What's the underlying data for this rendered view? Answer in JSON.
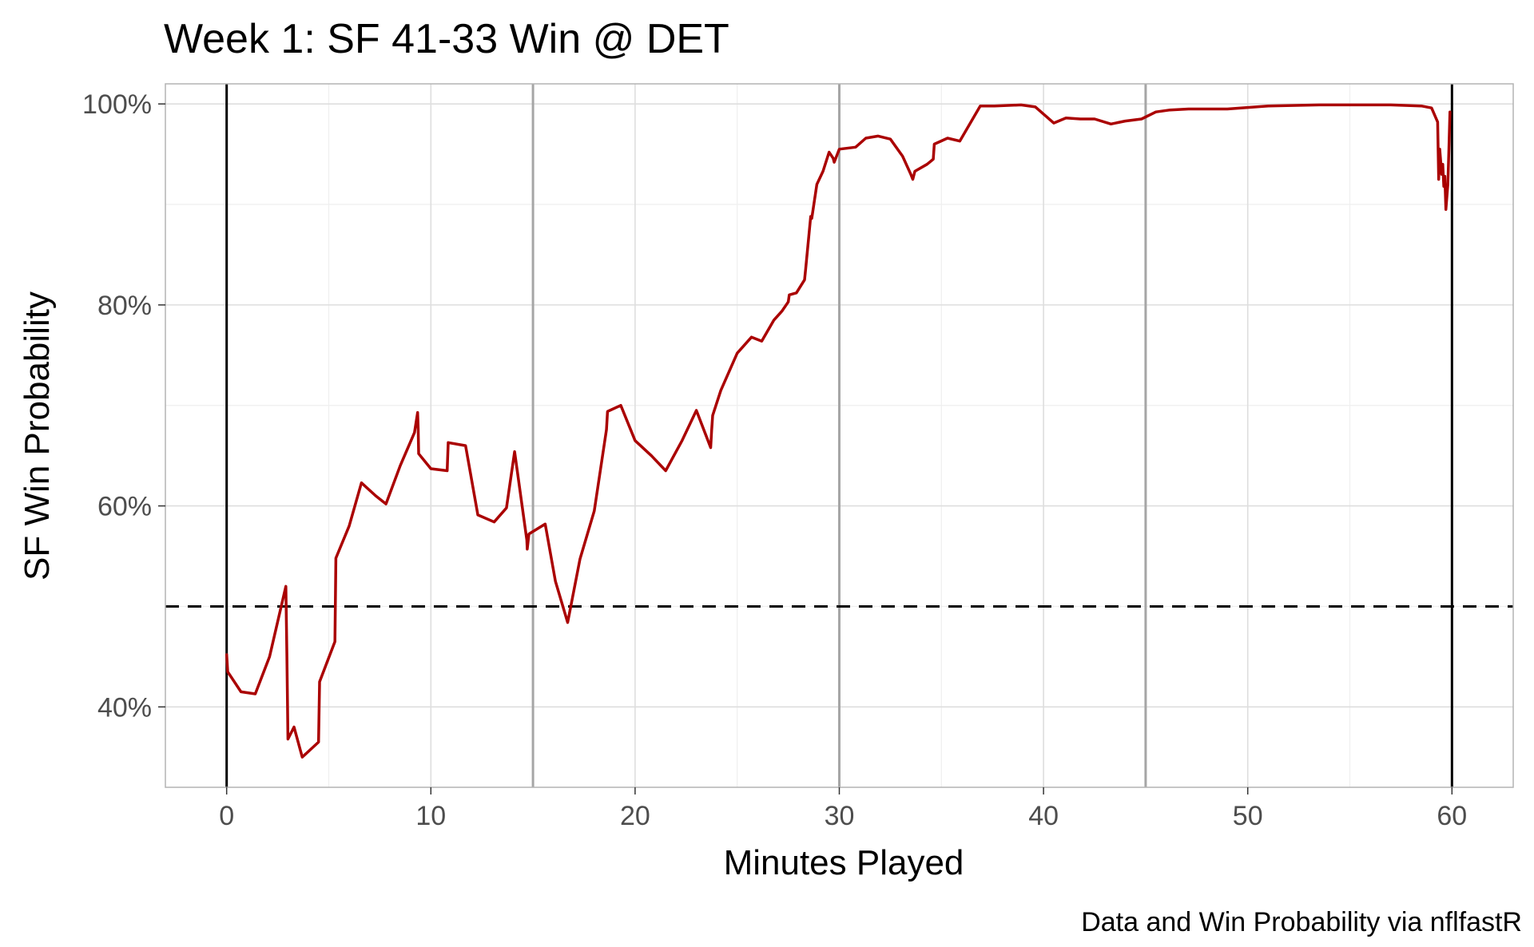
{
  "chart_data": {
    "type": "line",
    "title": "Week 1: SF 41-33 Win @ DET",
    "xlabel": "Minutes Played",
    "ylabel": "SF Win Probability",
    "caption": "Data and Win Probability via nflfastR",
    "xlim": [
      -3,
      63
    ],
    "ylim": [
      0.32,
      1.02
    ],
    "x_ticks": [
      0,
      10,
      20,
      30,
      40,
      50,
      60
    ],
    "x_tick_labels": [
      "0",
      "10",
      "20",
      "30",
      "40",
      "50",
      "60"
    ],
    "y_ticks": [
      0.4,
      0.6,
      0.8,
      1.0
    ],
    "y_tick_labels": [
      "40%",
      "60%",
      "80%",
      "100%"
    ],
    "grid": true,
    "reference_lines": {
      "horizontal_dashed": 0.5,
      "game_boundaries": [
        0,
        60
      ],
      "quarter_boundaries": [
        15,
        30,
        45
      ]
    },
    "colors": {
      "line": "#aa0000",
      "grid_major": "#dedede",
      "grid_minor": "#efefef",
      "quarter_lines": "#a6a6a6",
      "game_lines": "#000000",
      "panel_border": "#b3b3b3"
    },
    "series": [
      {
        "x": [
          0,
          0.05,
          0.7,
          1.4,
          2.1,
          2.9,
          2.95,
          3.0,
          3.3,
          3.7,
          4.5,
          4.55,
          5.3,
          5.35,
          6.0,
          6.6,
          7.3,
          7.8,
          8.5,
          9.2,
          9.35,
          9.38,
          9.4,
          10.0,
          10.8,
          10.85,
          11.7,
          12.3,
          13.1,
          13.7,
          14.1,
          14.7,
          14.72,
          14.8,
          15.6,
          16.1,
          16.7,
          17.3,
          18.0,
          18.6,
          18.65,
          19.3,
          20.0,
          20.8,
          21.5,
          22.3,
          23.0,
          23.7,
          23.75,
          23.8,
          24.2,
          25.0,
          25.7,
          26.2,
          26.8,
          27.2,
          27.5,
          27.55,
          27.9,
          28.3,
          28.35,
          28.6,
          28.65,
          28.9,
          29.2,
          29.5,
          29.7,
          29.75,
          30.0,
          30.8,
          31.3,
          31.9,
          32.5,
          33.1,
          33.5,
          33.6,
          33.7,
          34.3,
          34.6,
          34.65,
          35.3,
          35.9,
          36.9,
          37.6,
          38.9,
          39.6,
          40.5,
          41.1,
          41.8,
          42.5,
          43.3,
          44.0,
          44.8,
          45.5,
          46.2,
          47.1,
          49.0,
          51.0,
          53.5,
          55.0,
          57.0,
          58.5,
          59.0,
          59.3,
          59.35,
          59.4,
          59.5,
          59.55,
          59.6,
          59.65,
          59.7,
          59.8,
          59.85,
          59.9
        ],
        "y": [
          0.452,
          0.435,
          0.415,
          0.413,
          0.45,
          0.52,
          0.45,
          0.368,
          0.38,
          0.35,
          0.365,
          0.425,
          0.465,
          0.548,
          0.58,
          0.623,
          0.61,
          0.602,
          0.64,
          0.673,
          0.693,
          0.677,
          0.652,
          0.637,
          0.635,
          0.663,
          0.66,
          0.591,
          0.584,
          0.598,
          0.654,
          0.566,
          0.557,
          0.572,
          0.582,
          0.525,
          0.484,
          0.547,
          0.595,
          0.676,
          0.694,
          0.7,
          0.665,
          0.65,
          0.635,
          0.665,
          0.695,
          0.658,
          0.675,
          0.69,
          0.715,
          0.752,
          0.768,
          0.764,
          0.785,
          0.794,
          0.803,
          0.81,
          0.812,
          0.825,
          0.835,
          0.888,
          0.886,
          0.92,
          0.933,
          0.952,
          0.946,
          0.942,
          0.955,
          0.957,
          0.966,
          0.968,
          0.965,
          0.948,
          0.93,
          0.925,
          0.933,
          0.94,
          0.945,
          0.96,
          0.966,
          0.963,
          0.998,
          0.998,
          0.999,
          0.997,
          0.981,
          0.986,
          0.985,
          0.985,
          0.98,
          0.983,
          0.985,
          0.992,
          0.994,
          0.995,
          0.995,
          0.998,
          0.999,
          0.999,
          0.999,
          0.998,
          0.996,
          0.982,
          0.925,
          0.955,
          0.93,
          0.94,
          0.918,
          0.928,
          0.895,
          0.92,
          0.955,
          0.992
        ]
      }
    ]
  }
}
